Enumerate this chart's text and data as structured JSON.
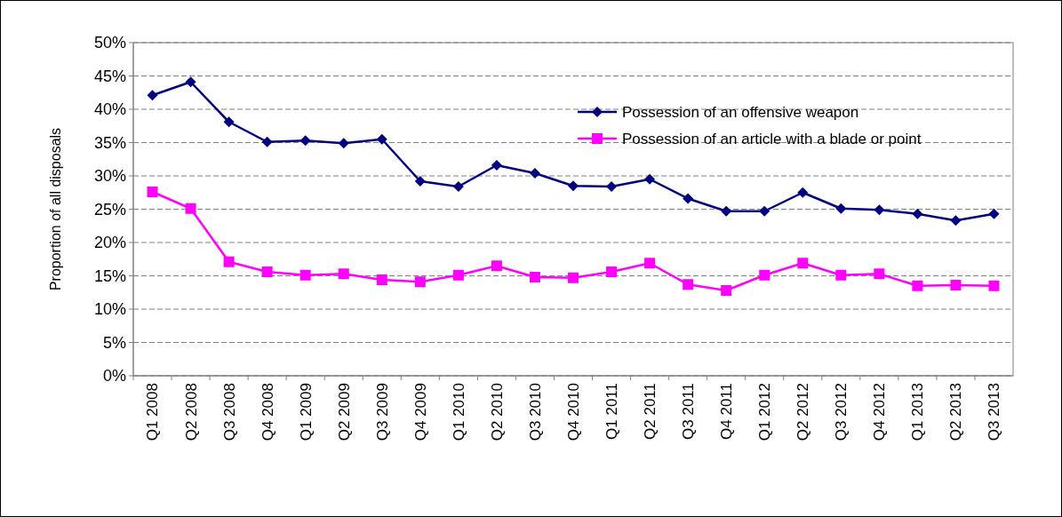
{
  "chart_data": {
    "type": "line",
    "ylabel": "Proportion of all disposals",
    "categories": [
      "Q1 2008",
      "Q2 2008",
      "Q3 2008",
      "Q4 2008",
      "Q1 2009",
      "Q2 2009",
      "Q3 2009",
      "Q4 2009",
      "Q1 2010",
      "Q2 2010",
      "Q3 2010",
      "Q4 2010",
      "Q1 2011",
      "Q2 2011",
      "Q3 2011",
      "Q4 2011",
      "Q1 2012",
      "Q2 2012",
      "Q3 2012",
      "Q4 2012",
      "Q1 2013",
      "Q2 2013",
      "Q3 2013"
    ],
    "series": [
      {
        "name": "Possession of an offensive weapon",
        "color": "#000080",
        "marker": "diamond",
        "values": [
          42.1,
          44.1,
          38.1,
          35.1,
          35.3,
          34.9,
          35.5,
          29.2,
          28.4,
          31.6,
          30.4,
          28.5,
          28.4,
          29.5,
          26.6,
          24.7,
          24.7,
          27.5,
          25.1,
          24.9,
          24.3,
          23.3,
          24.3
        ]
      },
      {
        "name": "Possession of an article with a blade or point",
        "color": "#ff00ff",
        "marker": "square",
        "values": [
          27.6,
          25.1,
          17.1,
          15.6,
          15.1,
          15.3,
          14.4,
          14.1,
          15.1,
          16.5,
          14.8,
          14.7,
          15.6,
          16.9,
          13.7,
          12.8,
          15.1,
          16.9,
          15.1,
          15.3,
          13.5,
          13.6,
          13.5
        ]
      }
    ],
    "ylim": [
      0,
      50
    ],
    "yticks": [
      {
        "value": 0,
        "label": "0%"
      },
      {
        "value": 5,
        "label": "5%"
      },
      {
        "value": 10,
        "label": "10%"
      },
      {
        "value": 15,
        "label": "15%"
      },
      {
        "value": 20,
        "label": "20%"
      },
      {
        "value": 25,
        "label": "25%"
      },
      {
        "value": 30,
        "label": "30%"
      },
      {
        "value": 35,
        "label": "35%"
      },
      {
        "value": 40,
        "label": "40%"
      },
      {
        "value": 45,
        "label": "45%"
      },
      {
        "value": 50,
        "label": "50%"
      }
    ],
    "grid": "y",
    "legend": "top right",
    "line_style": "solid"
  }
}
